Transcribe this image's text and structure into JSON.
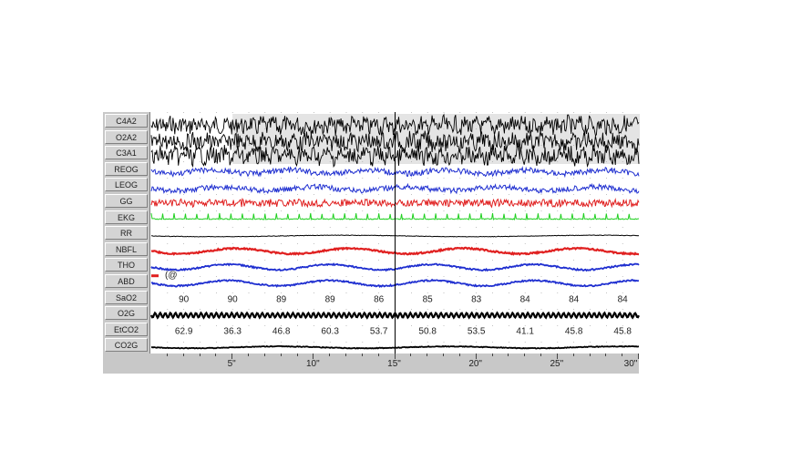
{
  "chart_data": {
    "type": "line",
    "channels": [
      "C4A2",
      "O2A2",
      "C3A1",
      "REOG",
      "LEOG",
      "GG",
      "EKG",
      "RR",
      "NBFL",
      "THO",
      "ABD",
      "SaO2",
      "O2G",
      "EtCO2",
      "CO2G"
    ],
    "channel_colors": {
      "C4A2": "#000000",
      "O2A2": "#000000",
      "C3A1": "#000000",
      "REOG": "#1f2fd0",
      "LEOG": "#1f2fd0",
      "GG": "#e02020",
      "EKG": "#20d020",
      "RR": "#000000",
      "NBFL": "#e02020",
      "THO": "#1f2fd0",
      "ABD": "#1f2fd0",
      "O2G": "#000000",
      "CO2G": "#000000"
    },
    "x_unit": "seconds",
    "xlim": [
      0,
      30
    ],
    "x_ticks": [
      5,
      10,
      15,
      20,
      25,
      30
    ],
    "x_tick_labels": [
      "5\"",
      "10\"",
      "15\"",
      "20\"",
      "25\"",
      "30\""
    ],
    "cursor_at": 15,
    "SaO2": {
      "x": [
        2,
        5,
        8,
        11,
        14,
        17,
        20,
        23,
        26,
        29
      ],
      "values": [
        "90",
        "90",
        "89",
        "89",
        "86",
        "85",
        "83",
        "84",
        "84",
        "84"
      ]
    },
    "EtCO2": {
      "x": [
        2,
        5,
        8,
        11,
        14,
        17,
        20,
        23,
        26,
        29
      ],
      "values": [
        "62.9",
        "36.3",
        "46.8",
        "60.3",
        "53.7",
        "50.8",
        "53.5",
        "41.1",
        "45.8",
        "45.8"
      ]
    },
    "annotation": "(@"
  }
}
